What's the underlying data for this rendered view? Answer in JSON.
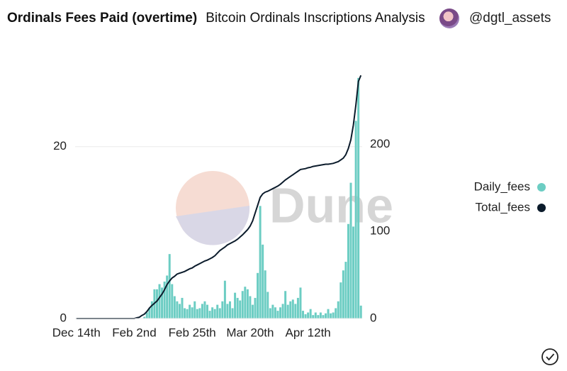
{
  "header": {
    "title": "Ordinals Fees Paid (overtime)",
    "subtitle": "Bitcoin Ordinals Inscriptions Analysis",
    "user": "@dgtl_assets"
  },
  "watermark": "Dune",
  "chart_data": {
    "type": "bar-line",
    "categories": [
      "Dec 14th",
      null,
      null,
      null,
      null,
      null,
      null,
      null,
      null,
      null,
      null,
      null,
      null,
      null,
      null,
      null,
      null,
      null,
      null,
      null,
      null,
      null,
      null,
      "Feb 2nd",
      null,
      null,
      null,
      null,
      null,
      null,
      null,
      null,
      null,
      null,
      null,
      null,
      null,
      null,
      null,
      null,
      null,
      null,
      null,
      null,
      null,
      null,
      "Feb 25th",
      null,
      null,
      null,
      null,
      null,
      null,
      null,
      null,
      null,
      null,
      null,
      null,
      null,
      null,
      null,
      null,
      null,
      null,
      null,
      null,
      null,
      null,
      "Mar 20th",
      null,
      null,
      null,
      null,
      null,
      null,
      null,
      null,
      null,
      null,
      null,
      null,
      null,
      null,
      null,
      null,
      null,
      null,
      null,
      null,
      null,
      null,
      "Apr 12th",
      null,
      null,
      null,
      null,
      null,
      null,
      null,
      null,
      null,
      null,
      null,
      null,
      null,
      null,
      null,
      null,
      null,
      null,
      null,
      null,
      null
    ],
    "series": [
      {
        "name": "Daily_fees",
        "color": "#6ccdc3",
        "values": [
          0,
          0,
          0,
          0,
          0,
          0,
          0,
          0,
          0,
          0,
          0,
          0,
          0,
          0,
          0,
          0,
          0,
          0,
          0,
          0,
          0,
          0,
          0,
          0,
          0,
          0,
          0,
          0.2,
          0.7,
          1.2,
          2.0,
          3.4,
          3.4,
          4.0,
          3.6,
          4.3,
          5.0,
          7.5,
          4.0,
          2.6,
          2.0,
          1.7,
          2.4,
          1.2,
          1.1,
          1.6,
          1.3,
          2.0,
          1.1,
          1.2,
          1.7,
          2.0,
          1.6,
          0.9,
          1.3,
          1.1,
          1.6,
          1.2,
          2.0,
          4.4,
          1.7,
          2.0,
          1.2,
          3.0,
          2.4,
          2.1,
          3.2,
          3.7,
          3.4,
          2.6,
          1.6,
          2.4,
          5.3,
          13.1,
          8.6,
          5.6,
          3.1,
          1.2,
          1.6,
          1.3,
          0.9,
          1.3,
          1.7,
          3.2,
          1.6,
          2.0,
          2.2,
          1.7,
          2.4,
          3.6,
          0.9,
          0.5,
          0.7,
          1.1,
          0.4,
          0.7,
          0.4,
          0.7,
          0.4,
          0.6,
          1.1,
          0.6,
          0.7,
          1.2,
          2.0,
          4.2,
          5.6,
          6.6,
          11.0,
          15.8,
          10.7,
          23.0,
          28.0,
          1.5
        ]
      },
      {
        "name": "Total_fees",
        "color": "#0b1b2b",
        "axis": "y2",
        "values": [
          0,
          0,
          0,
          0,
          0,
          0,
          0,
          0,
          0,
          0,
          0,
          0,
          0,
          0,
          0,
          0,
          0,
          0,
          0,
          0,
          0,
          0,
          0,
          0,
          0.8,
          1.5,
          3.5,
          5,
          8,
          12,
          15,
          17.5,
          20,
          24,
          28,
          33,
          39,
          43,
          46.5,
          48.5,
          51,
          52,
          53,
          54,
          55.5,
          57,
          58,
          60,
          61.5,
          63,
          64.5,
          66,
          67,
          68.5,
          70,
          72,
          75,
          78,
          80,
          82,
          84.5,
          86,
          87.5,
          89,
          91,
          93.5,
          96,
          99,
          102,
          106,
          112,
          121,
          130,
          139,
          143,
          145,
          146,
          147.5,
          149,
          150.5,
          152,
          154,
          156.5,
          159,
          161,
          163,
          165,
          167,
          169,
          171,
          171.5,
          172,
          173,
          173.5,
          174.5,
          175,
          175.5,
          176,
          176.5,
          177,
          177,
          177.5,
          178,
          179,
          180,
          182,
          184,
          188,
          195,
          205,
          222,
          245,
          272,
          279
        ]
      }
    ],
    "ylim": [
      0,
      28.4
    ],
    "yticks": [
      0,
      20
    ],
    "y2lim": [
      0,
      280
    ],
    "y2ticks": [
      0,
      100,
      200
    ],
    "grid": true,
    "legend": "right"
  }
}
